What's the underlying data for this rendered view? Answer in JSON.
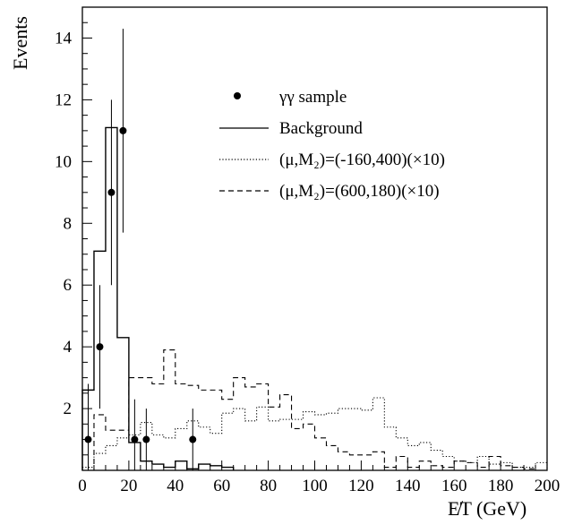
{
  "chart_data": {
    "type": "histogram",
    "ylabel": "Events",
    "xlabel": "E̸T (GeV)",
    "xlim": [
      0,
      200
    ],
    "ylim": [
      0,
      15
    ],
    "xticks": [
      0,
      20,
      40,
      60,
      80,
      100,
      120,
      140,
      160,
      180,
      200
    ],
    "yticks": [
      2,
      4,
      6,
      8,
      10,
      12,
      14
    ],
    "bin_width": 5,
    "legend": {
      "position": "top-right",
      "entries": [
        {
          "label": "γγ sample",
          "style": "marker"
        },
        {
          "label": "Background",
          "style": "solid"
        },
        {
          "label": "(μ,M₂)=(-160,400)(×10)",
          "style": "dotted"
        },
        {
          "label": "(μ,M₂)=(600,180)(×10)",
          "style": "dashed"
        }
      ]
    },
    "series": [
      {
        "name": "Background",
        "style": "solid",
        "x_edges": [
          0,
          5,
          10,
          15,
          20,
          25,
          30,
          35,
          40,
          45,
          50,
          55,
          60,
          65
        ],
        "values": [
          2.6,
          7.1,
          11.1,
          4.3,
          0.9,
          0.3,
          0.2,
          0.1,
          0.3,
          0.05,
          0.2,
          0.15,
          0.1
        ]
      },
      {
        "name": "(μ,M₂)=(-160,400)(×10)",
        "style": "dotted",
        "x_edges": [
          0,
          5,
          10,
          15,
          20,
          25,
          30,
          35,
          40,
          45,
          50,
          55,
          60,
          65,
          70,
          75,
          80,
          85,
          90,
          95,
          100,
          105,
          110,
          115,
          120,
          125,
          130,
          135,
          140,
          145,
          150,
          155,
          160,
          165,
          170,
          175,
          180,
          185,
          190,
          195,
          200
        ],
        "values": [
          0.1,
          0.55,
          0.8,
          1.05,
          1.15,
          1.55,
          1.15,
          1.05,
          1.35,
          1.6,
          1.4,
          1.2,
          1.85,
          2.0,
          1.6,
          2.05,
          1.6,
          1.65,
          1.65,
          1.9,
          1.8,
          1.85,
          2.0,
          2.0,
          1.95,
          2.35,
          1.4,
          1.05,
          0.8,
          0.9,
          0.65,
          0.45,
          0.3,
          0.25,
          0.45,
          0.2,
          0.25,
          0.1,
          0.1,
          0.25
        ]
      },
      {
        "name": "(μ,M₂)=(600,180)(×10)",
        "style": "dashed",
        "x_edges": [
          0,
          5,
          10,
          15,
          20,
          25,
          30,
          35,
          40,
          45,
          50,
          55,
          60,
          65,
          70,
          75,
          80,
          85,
          90,
          95,
          100,
          105,
          110,
          115,
          120,
          125,
          130,
          135,
          140,
          145,
          150,
          155,
          160,
          165,
          170,
          175,
          180,
          185,
          190,
          195,
          200
        ],
        "values": [
          0.0,
          1.8,
          1.3,
          1.3,
          3.0,
          3.0,
          2.8,
          3.9,
          2.8,
          2.75,
          2.6,
          2.6,
          2.3,
          3.0,
          2.7,
          2.8,
          2.05,
          2.45,
          1.35,
          1.5,
          1.05,
          0.8,
          0.6,
          0.5,
          0.5,
          0.6,
          0.1,
          0.45,
          0.1,
          0.3,
          0.15,
          0.1,
          0.3,
          0.25,
          0.1,
          0.45,
          0.15,
          0.1,
          0.05,
          0.0
        ]
      },
      {
        "name": "γγ sample",
        "style": "points",
        "points": [
          {
            "x": 2.5,
            "y": 1,
            "err_low": 1,
            "err_high": 1.8
          },
          {
            "x": 7.5,
            "y": 4,
            "err_low": 2.0,
            "err_high": 2.0
          },
          {
            "x": 12.5,
            "y": 9,
            "err_low": 3.0,
            "err_high": 3.0
          },
          {
            "x": 17.5,
            "y": 11,
            "err_low": 3.3,
            "err_high": 3.3
          },
          {
            "x": 22.5,
            "y": 1,
            "err_low": 1,
            "err_high": 1.3
          },
          {
            "x": 27.5,
            "y": 1,
            "err_low": 1,
            "err_high": 1.0
          },
          {
            "x": 47.5,
            "y": 1,
            "err_low": 1,
            "err_high": 1.0
          }
        ]
      }
    ]
  }
}
